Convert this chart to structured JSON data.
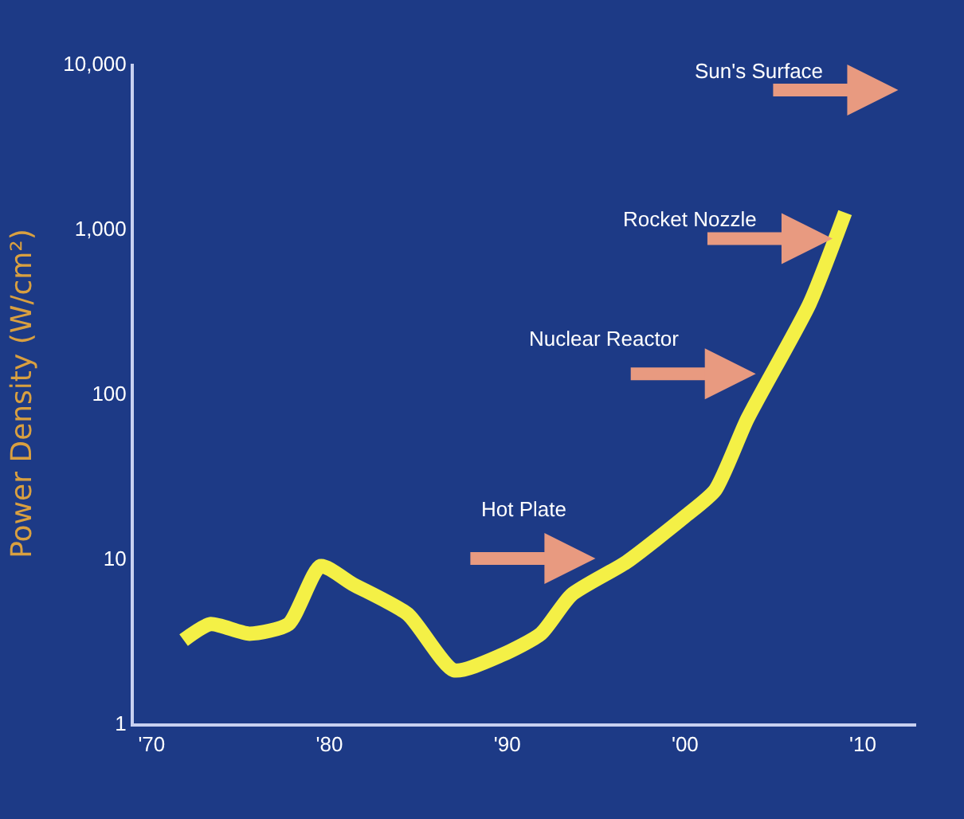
{
  "chart_data": {
    "type": "line",
    "ylabel": "Power Density (W/cm²)",
    "x": [
      1971.8,
      1973.3,
      1975.5,
      1977.7,
      1979.5,
      1981.3,
      1984.4,
      1987,
      1989.7,
      1991.9,
      1993.6,
      1996.7,
      2000,
      2001.7,
      2003.5,
      2007,
      2009
    ],
    "series": [
      {
        "color": "#f4f046",
        "values": [
          3.2,
          4,
          3.5,
          4,
          9,
          7,
          4.6,
          2.1,
          2.6,
          3.5,
          6,
          9.5,
          18,
          26,
          70,
          350,
          1250
        ]
      }
    ],
    "log": true,
    "ylim": [
      1,
      10000
    ],
    "yticks": [
      1,
      10,
      100,
      {
        "value": 1000,
        "label": "1,000"
      },
      {
        "value": 10000,
        "label": "10,000"
      }
    ],
    "xlim": [
      1969,
      2013
    ],
    "xticks": [
      {
        "value": 1970,
        "label": "'70"
      },
      {
        "value": 1980,
        "label": "'80"
      },
      {
        "value": 1990,
        "label": "'90"
      },
      {
        "value": 2000,
        "label": "'00"
      },
      {
        "value": 2010,
        "label": "'10"
      }
    ],
    "annotations": [
      "Hot Plate",
      "Nuclear Reactor",
      "Rocket Nozzle",
      "Sun's Surface"
    ],
    "grid": false,
    "legend": false,
    "marker": "none",
    "line_style": "solid"
  }
}
